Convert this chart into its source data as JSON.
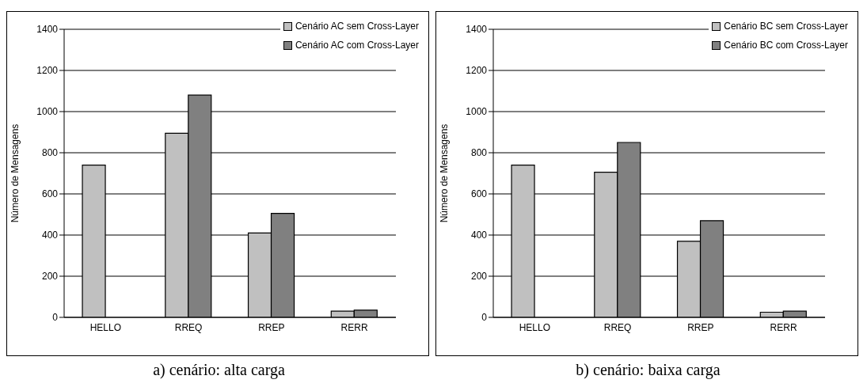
{
  "chart_data": [
    {
      "type": "bar",
      "title": "a) cenário: alta carga",
      "ylabel": "Número de Mensagens",
      "categories": [
        "HELLO",
        "RREQ",
        "RREP",
        "RERR"
      ],
      "series": [
        {
          "name": "Cenário AC sem Cross-Layer",
          "color": "#c0c0c0",
          "values": [
            740,
            895,
            410,
            30
          ]
        },
        {
          "name": "Cenário AC com Cross-Layer",
          "color": "#808080",
          "values": [
            null,
            1080,
            505,
            35
          ]
        }
      ],
      "ylim": [
        0,
        1400
      ],
      "yticks": [
        0,
        200,
        400,
        600,
        800,
        1000,
        1200,
        1400
      ],
      "grid": "y",
      "legend": "top right"
    },
    {
      "type": "bar",
      "title": "b) cenário: baixa carga",
      "ylabel": "Número de Mensagens",
      "categories": [
        "HELLO",
        "RREQ",
        "RREP",
        "RERR"
      ],
      "series": [
        {
          "name": "Cenário BC sem Cross-Layer",
          "color": "#c0c0c0",
          "values": [
            740,
            705,
            370,
            25
          ]
        },
        {
          "name": "Cenário BC com Cross-Layer",
          "color": "#808080",
          "values": [
            null,
            850,
            470,
            30
          ]
        }
      ],
      "ylim": [
        0,
        1400
      ],
      "yticks": [
        0,
        200,
        400,
        600,
        800,
        1000,
        1200,
        1400
      ],
      "grid": "y",
      "legend": "top right"
    }
  ]
}
